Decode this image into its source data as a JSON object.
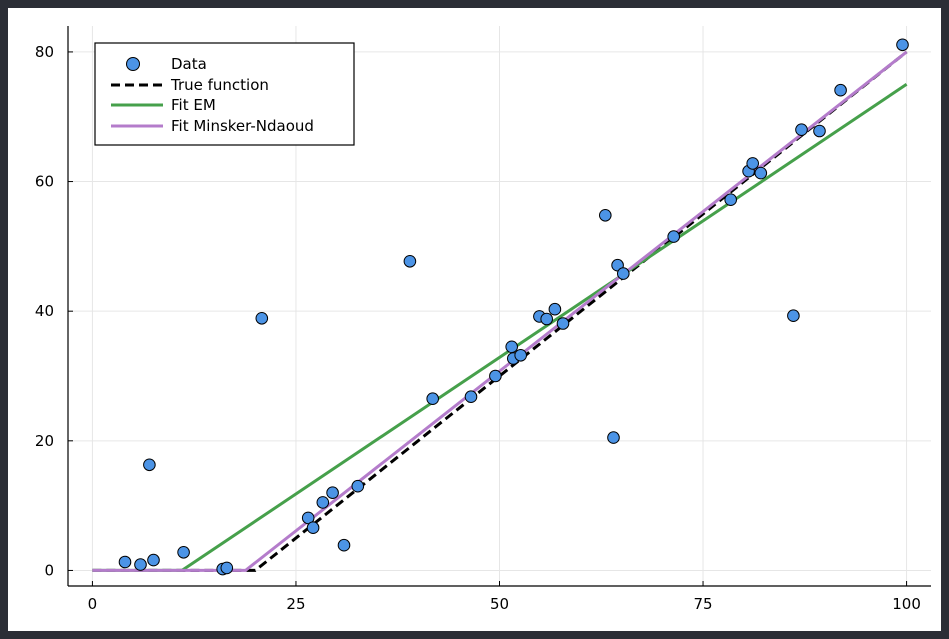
{
  "chart_data": {
    "type": "scatter",
    "title": "",
    "xlabel": "",
    "ylabel": "",
    "xlim": [
      -3,
      103
    ],
    "ylim": [
      -2.4,
      84
    ],
    "x_ticks": [
      0,
      25,
      50,
      75,
      100
    ],
    "y_ticks": [
      0,
      20,
      40,
      60,
      80
    ],
    "grid": true,
    "legend_position": "top-left",
    "colors": {
      "data": "#4c94e6",
      "true_function": "#000000",
      "fit_em": "#46a04b",
      "fit_mn": "#b47ccb"
    },
    "series": [
      {
        "name": "Data",
        "kind": "scatter",
        "points": [
          [
            4.0,
            1.3
          ],
          [
            5.9,
            0.9
          ],
          [
            7.0,
            16.3
          ],
          [
            7.5,
            1.6
          ],
          [
            11.2,
            2.8
          ],
          [
            16.0,
            0.2
          ],
          [
            16.5,
            0.4
          ],
          [
            20.8,
            38.9
          ],
          [
            26.5,
            8.1
          ],
          [
            27.1,
            6.6
          ],
          [
            28.3,
            10.5
          ],
          [
            29.5,
            12.0
          ],
          [
            30.9,
            3.9
          ],
          [
            32.6,
            13.0
          ],
          [
            39.0,
            47.7
          ],
          [
            41.8,
            26.5
          ],
          [
            46.5,
            26.8
          ],
          [
            49.5,
            30.0
          ],
          [
            51.5,
            34.5
          ],
          [
            51.7,
            32.7
          ],
          [
            52.6,
            33.2
          ],
          [
            54.9,
            39.2
          ],
          [
            55.8,
            38.8
          ],
          [
            56.8,
            40.3
          ],
          [
            57.8,
            38.1
          ],
          [
            63.0,
            54.8
          ],
          [
            64.0,
            20.5
          ],
          [
            64.5,
            47.1
          ],
          [
            65.2,
            45.8
          ],
          [
            71.4,
            51.5
          ],
          [
            78.4,
            57.2
          ],
          [
            80.6,
            61.6
          ],
          [
            81.1,
            62.8
          ],
          [
            82.1,
            61.3
          ],
          [
            86.1,
            39.3
          ],
          [
            87.1,
            68.0
          ],
          [
            89.3,
            67.8
          ],
          [
            91.9,
            74.1
          ],
          [
            99.5,
            81.1
          ]
        ]
      },
      {
        "name": "True function",
        "kind": "line",
        "style": "dashed",
        "points": [
          [
            0,
            0
          ],
          [
            20,
            0
          ],
          [
            100,
            80
          ]
        ]
      },
      {
        "name": "Fit EM",
        "kind": "line",
        "style": "solid",
        "points": [
          [
            0,
            0
          ],
          [
            11,
            0
          ],
          [
            100,
            75
          ]
        ]
      },
      {
        "name": "Fit Minsker-Ndaoud",
        "kind": "line",
        "style": "solid",
        "points": [
          [
            0,
            0
          ],
          [
            18.8,
            0
          ],
          [
            100,
            80
          ]
        ]
      }
    ]
  }
}
